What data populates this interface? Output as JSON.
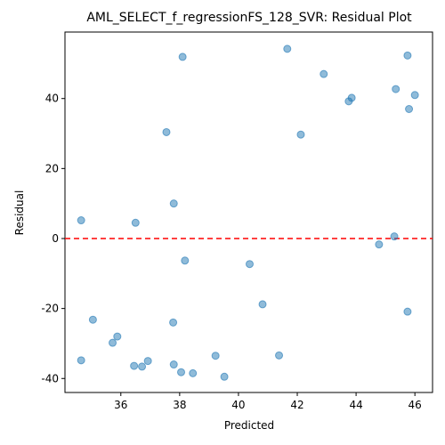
{
  "chart_data": {
    "type": "scatter",
    "title": "AML_SELECT_f_regressionFS_128_SVR: Residual Plot",
    "xlabel": "Predicted",
    "ylabel": "Residual",
    "xlim": [
      34.1,
      46.6
    ],
    "ylim": [
      -44,
      59
    ],
    "xticks": [
      36,
      38,
      40,
      42,
      44,
      46
    ],
    "yticks": [
      -40,
      -20,
      0,
      20,
      40
    ],
    "grid": false,
    "reference_line": {
      "y": 0,
      "color": "#ff0000",
      "style": "dashed"
    },
    "marker_color": "#1f77b4",
    "marker_alpha": 0.5,
    "points": [
      {
        "x": 41.66,
        "y": 54.2
      },
      {
        "x": 38.1,
        "y": 51.9
      },
      {
        "x": 45.75,
        "y": 52.3
      },
      {
        "x": 42.9,
        "y": 47.0
      },
      {
        "x": 45.35,
        "y": 42.7
      },
      {
        "x": 46.0,
        "y": 41.0
      },
      {
        "x": 43.85,
        "y": 40.2
      },
      {
        "x": 43.75,
        "y": 39.2
      },
      {
        "x": 45.8,
        "y": 37.0
      },
      {
        "x": 37.55,
        "y": 30.4
      },
      {
        "x": 42.12,
        "y": 29.7
      },
      {
        "x": 37.8,
        "y": 10.0
      },
      {
        "x": 34.65,
        "y": 5.2
      },
      {
        "x": 36.5,
        "y": 4.5
      },
      {
        "x": 45.3,
        "y": 0.6
      },
      {
        "x": 44.78,
        "y": -1.7
      },
      {
        "x": 38.18,
        "y": -6.3
      },
      {
        "x": 40.38,
        "y": -7.3
      },
      {
        "x": 40.82,
        "y": -18.8
      },
      {
        "x": 45.75,
        "y": -20.9
      },
      {
        "x": 35.05,
        "y": -23.2
      },
      {
        "x": 37.78,
        "y": -24.0
      },
      {
        "x": 35.88,
        "y": -28.0
      },
      {
        "x": 35.72,
        "y": -29.8
      },
      {
        "x": 39.22,
        "y": -33.5
      },
      {
        "x": 41.38,
        "y": -33.4
      },
      {
        "x": 34.65,
        "y": -34.8
      },
      {
        "x": 36.92,
        "y": -35.0
      },
      {
        "x": 36.45,
        "y": -36.4
      },
      {
        "x": 36.72,
        "y": -36.6
      },
      {
        "x": 37.8,
        "y": -36.0
      },
      {
        "x": 38.05,
        "y": -38.2
      },
      {
        "x": 38.45,
        "y": -38.5
      },
      {
        "x": 39.52,
        "y": -39.5
      }
    ]
  }
}
